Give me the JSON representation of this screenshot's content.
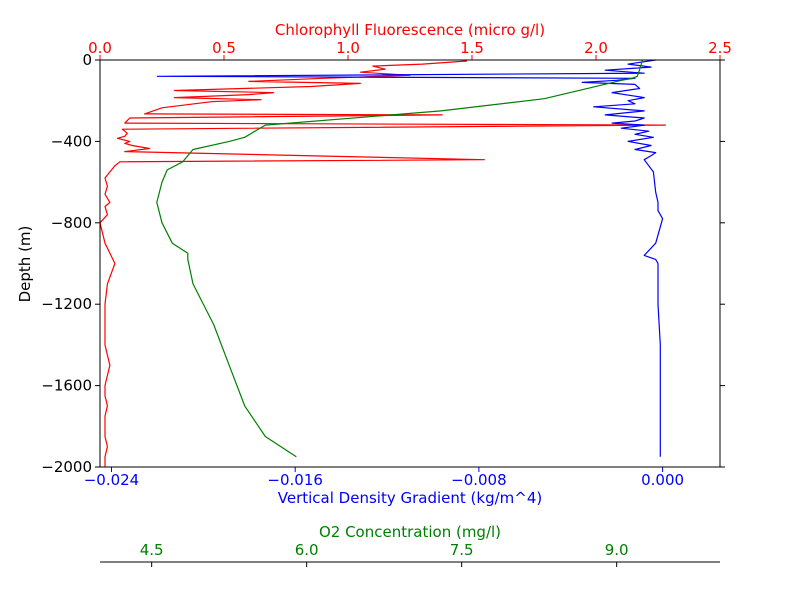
{
  "chart_data": {
    "type": "line",
    "ylabel": "Depth (m)",
    "ylim": [
      -2000,
      0
    ],
    "yticks": [
      0,
      -400,
      -800,
      -1200,
      -1600,
      -2000
    ],
    "ytick_labels": [
      "0",
      "−400",
      "−800",
      "−1200",
      "−1600",
      "−2000"
    ],
    "axes": {
      "top": {
        "label": "Chlorophyll Fluorescence (micro g/l)",
        "color": "#ff0000",
        "lim": [
          0,
          2.5
        ],
        "ticks": [
          0,
          0.5,
          1.0,
          1.5,
          2.0,
          2.5
        ],
        "tick_labels": [
          "0.0",
          "0.5",
          "1.0",
          "1.5",
          "2.0",
          "2.5"
        ]
      },
      "bottom": {
        "label": "Vertical Density Gradient (kg/m^4)",
        "color": "#0000ff",
        "lim": [
          -0.0245,
          0.0025
        ],
        "ticks": [
          -0.024,
          -0.016,
          -0.008,
          0.0
        ],
        "tick_labels": [
          "−0.024",
          "−0.016",
          "−0.008",
          "0.000"
        ]
      },
      "extra": {
        "label": "O2 Concentration (mg/l)",
        "color": "#008000",
        "lim": [
          4.0,
          10.0
        ],
        "ticks": [
          4.5,
          6.0,
          7.5,
          9.0
        ],
        "tick_labels": [
          "4.5",
          "6.0",
          "7.5",
          "9.0"
        ]
      }
    },
    "series": [
      {
        "axis": "top",
        "color": "#ff0000",
        "x": [
          1.48,
          1.3,
          1.1,
          1.15,
          1.05,
          1.25,
          0.9,
          0.6,
          1.05,
          0.85,
          0.3,
          0.7,
          0.6,
          0.3,
          0.65,
          0.45,
          0.38,
          0.25,
          0.18,
          1.38,
          0.12,
          0.1,
          2.28,
          0.09,
          0.11,
          0.1,
          0.07,
          0.12,
          0.1,
          0.13,
          0.2,
          0.1,
          1.55,
          0.08,
          0.06,
          0.04,
          0.02,
          0.03,
          0.02,
          0.04,
          0.02,
          0.03,
          0.0,
          0.02,
          0.06,
          0.03,
          0.02,
          0.02,
          0.02,
          0.03,
          0.04,
          0.03,
          0.02,
          0.02,
          0.03,
          0.02,
          0.02,
          0.02,
          0.03,
          0.02,
          0.02
        ],
        "y": [
          -5,
          -20,
          -30,
          -45,
          -60,
          -75,
          -90,
          -105,
          -115,
          -130,
          -150,
          -160,
          -170,
          -185,
          -195,
          -205,
          -215,
          -235,
          -265,
          -270,
          -285,
          -310,
          -320,
          -340,
          -360,
          -375,
          -385,
          -400,
          -410,
          -420,
          -435,
          -450,
          -490,
          -500,
          -520,
          -550,
          -580,
          -620,
          -660,
          -700,
          -720,
          -760,
          -800,
          -900,
          -1000,
          -1100,
          -1200,
          -1300,
          -1400,
          -1450,
          -1500,
          -1550,
          -1600,
          -1650,
          -1700,
          -1750,
          -1800,
          -1850,
          -1900,
          -1950,
          -2000
        ]
      },
      {
        "axis": "bottom",
        "color": "#0000ff",
        "x": [
          -0.0003,
          -0.0015,
          -0.0005,
          -0.0025,
          -0.0008,
          -0.022,
          -0.0012,
          -0.002,
          -0.0035,
          -0.0012,
          -0.001,
          -0.0022,
          -0.0008,
          -0.0015,
          -0.0012,
          -0.003,
          -0.0008,
          -0.0025,
          -0.0008,
          -0.0012,
          -0.0022,
          -0.0008,
          -0.0018,
          -0.0006,
          -0.0012,
          -0.0004,
          -0.0015,
          -0.0005,
          -0.0012,
          -0.0003,
          -0.0005,
          -0.0008,
          -0.0004,
          -0.0003,
          -0.0002,
          -0.0002,
          0.0,
          -0.0003,
          -0.0008,
          -0.0003,
          -0.0002,
          -0.0002,
          -0.0001,
          -0.0001,
          -0.0001,
          -0.0001,
          -0.0001
        ],
        "y": [
          0,
          -20,
          -35,
          -50,
          -65,
          -80,
          -90,
          -100,
          -110,
          -120,
          -140,
          -160,
          -185,
          -200,
          -215,
          -230,
          -250,
          -270,
          -285,
          -300,
          -310,
          -320,
          -335,
          -350,
          -365,
          -380,
          -400,
          -420,
          -440,
          -455,
          -470,
          -490,
          -550,
          -650,
          -700,
          -740,
          -780,
          -900,
          -960,
          -980,
          -1000,
          -1200,
          -1400,
          -1600,
          -1800,
          -1900,
          -1950
        ]
      },
      {
        "axis": "extra",
        "color": "#008000",
        "x": [
          9.25,
          9.22,
          9.2,
          9.15,
          9.05,
          8.3,
          7.3,
          5.6,
          5.4,
          5.25,
          4.9,
          4.8,
          4.65,
          4.6,
          4.55,
          4.6,
          4.7,
          4.85,
          4.85,
          4.9,
          5.1,
          5.25,
          5.4,
          5.6,
          5.9
        ],
        "y": [
          0,
          -50,
          -80,
          -90,
          -100,
          -190,
          -250,
          -320,
          -380,
          -400,
          -440,
          -500,
          -540,
          -600,
          -700,
          -800,
          -900,
          -950,
          -980,
          -1100,
          -1300,
          -1500,
          -1700,
          -1850,
          -1950
        ]
      }
    ]
  }
}
